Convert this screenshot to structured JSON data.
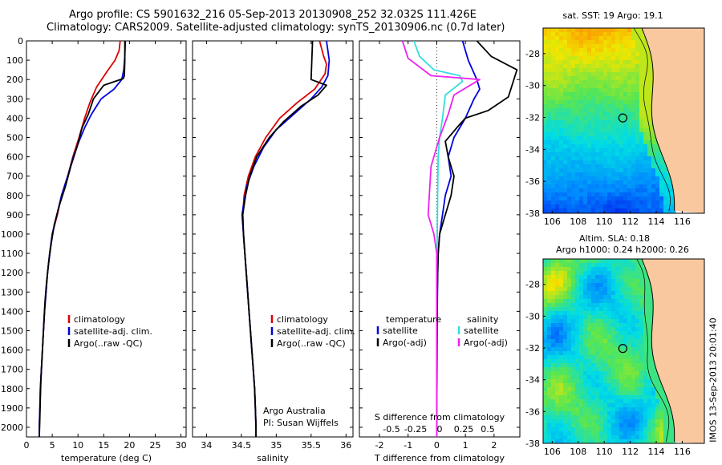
{
  "header": {
    "line1": "Argo profile: CS 5901632_216 05-Sep-2013 20130908_252 32.032S 111.426E",
    "line2": "Climatology: CARS2009. Satellite-adjusted climatology: synTS_20130906.nc (0.7d later)"
  },
  "colors": {
    "climatology": "#dd0000",
    "satellite": "#0000dd",
    "argo": "#000000",
    "salinity_sat": "#33dddd",
    "salinity_argo": "#ee22ee",
    "land": "#f9c89f"
  },
  "panels": {
    "temperature": {
      "xlabel": "temperature (deg C)",
      "legend": [
        "climatology",
        "satellite-adj. clim.",
        "Argo(..raw -QC)"
      ]
    },
    "salinity": {
      "xlabel": "salinity",
      "legend": [
        "climatology",
        "satellite-adj. clim.",
        "Argo(..raw -QC)"
      ],
      "note1": "Argo Australia",
      "note2": "PI: Susan Wijffels"
    },
    "difference": {
      "xlabel": "T difference from climatology",
      "top_title": "S difference from climatology",
      "legend_temp_title": "temperature",
      "legend_sal_title": "salinity",
      "legend_temp": [
        "satellite",
        "Argo(-adj)"
      ],
      "legend_sal": [
        "satellite",
        "Argo(-adj)"
      ]
    },
    "map_sst": {
      "title": "sat. SST: 19 Argo: 19.1"
    },
    "map_sla": {
      "title1": "Altim. SLA: 0.18",
      "title2": "Argo h1000: 0.24 h2000: 0.26"
    }
  },
  "stamp": "IMOS 13-Sep-2013 20:01:40",
  "chart_data": [
    {
      "type": "line",
      "title": "",
      "xlabel": "temperature (deg C)",
      "ylabel": "",
      "xlim": [
        0,
        31
      ],
      "ylim": [
        2050,
        0
      ],
      "y_reversed": true,
      "xticks": [
        "0",
        "5",
        "10",
        "15",
        "20",
        "25",
        "30"
      ],
      "yticks": [
        "0",
        "100",
        "200",
        "300",
        "400",
        "500",
        "600",
        "700",
        "800",
        "900",
        "1000",
        "1100",
        "1200",
        "1300",
        "1400",
        "1500",
        "1600",
        "1700",
        "1800",
        "1900",
        "2000"
      ],
      "series": [
        {
          "name": "climatology",
          "color": "#dd0000",
          "points": [
            [
              18.2,
              0
            ],
            [
              18.0,
              50
            ],
            [
              17.2,
              100
            ],
            [
              15.6,
              160
            ],
            [
              13.6,
              240
            ],
            [
              12.3,
              320
            ],
            [
              11.3,
              400
            ],
            [
              10.2,
              500
            ],
            [
              9.0,
              600
            ],
            [
              8.0,
              700
            ],
            [
              6.8,
              800
            ],
            [
              6.0,
              900
            ],
            [
              5.0,
              1000
            ],
            [
              4.5,
              1100
            ],
            [
              4.1,
              1200
            ],
            [
              3.8,
              1300
            ],
            [
              3.5,
              1400
            ],
            [
              3.3,
              1500
            ],
            [
              3.1,
              1600
            ],
            [
              2.9,
              1700
            ],
            [
              2.7,
              1800
            ],
            [
              2.6,
              1900
            ],
            [
              2.5,
              2000
            ],
            [
              2.5,
              2050
            ]
          ]
        },
        {
          "name": "satellite-adj. clim.",
          "color": "#0000dd",
          "points": [
            [
              19.2,
              0
            ],
            [
              19.1,
              80
            ],
            [
              18.9,
              150
            ],
            [
              18.5,
              200
            ],
            [
              17.0,
              250
            ],
            [
              14.5,
              300
            ],
            [
              12.6,
              380
            ],
            [
              11.3,
              450
            ],
            [
              10.2,
              520
            ],
            [
              9.1,
              600
            ],
            [
              8.0,
              700
            ],
            [
              6.8,
              800
            ],
            [
              5.9,
              900
            ],
            [
              5.0,
              1000
            ],
            [
              4.5,
              1100
            ],
            [
              4.1,
              1200
            ],
            [
              3.8,
              1300
            ],
            [
              3.5,
              1400
            ],
            [
              3.3,
              1500
            ],
            [
              3.1,
              1600
            ],
            [
              2.9,
              1700
            ],
            [
              2.7,
              1800
            ],
            [
              2.6,
              1900
            ],
            [
              2.5,
              2000
            ],
            [
              2.5,
              2050
            ]
          ]
        },
        {
          "name": "Argo(..raw -QC)",
          "color": "#000000",
          "points": [
            [
              19.1,
              0
            ],
            [
              19.1,
              100
            ],
            [
              19.0,
              180
            ],
            [
              18.8,
              195
            ],
            [
              15.0,
              230
            ],
            [
              13.0,
              300
            ],
            [
              12.0,
              380
            ],
            [
              10.8,
              450
            ],
            [
              9.8,
              550
            ],
            [
              8.6,
              650
            ],
            [
              7.6,
              750
            ],
            [
              6.4,
              850
            ],
            [
              5.4,
              950
            ],
            [
              4.8,
              1050
            ],
            [
              4.3,
              1150
            ],
            [
              3.9,
              1250
            ],
            [
              3.6,
              1350
            ],
            [
              3.4,
              1450
            ],
            [
              3.2,
              1550
            ],
            [
              3.0,
              1650
            ],
            [
              2.8,
              1750
            ],
            [
              2.7,
              1850
            ],
            [
              2.6,
              1950
            ],
            [
              2.5,
              2050
            ]
          ]
        }
      ]
    },
    {
      "type": "line",
      "title": "",
      "xlabel": "salinity",
      "ylabel": "",
      "xlim": [
        33.8,
        36.1
      ],
      "ylim": [
        2050,
        0
      ],
      "y_reversed": true,
      "xticks": [
        "34",
        "34.5",
        "35",
        "35.5",
        "36"
      ],
      "series": [
        {
          "name": "climatology",
          "color": "#dd0000",
          "points": [
            [
              35.62,
              0
            ],
            [
              35.68,
              80
            ],
            [
              35.72,
              120
            ],
            [
              35.7,
              170
            ],
            [
              35.55,
              250
            ],
            [
              35.3,
              320
            ],
            [
              35.05,
              400
            ],
            [
              34.85,
              500
            ],
            [
              34.7,
              600
            ],
            [
              34.6,
              700
            ],
            [
              34.54,
              800
            ],
            [
              34.52,
              900
            ],
            [
              34.53,
              1000
            ],
            [
              34.55,
              1100
            ],
            [
              34.57,
              1200
            ],
            [
              34.59,
              1300
            ],
            [
              34.61,
              1400
            ],
            [
              34.63,
              1500
            ],
            [
              34.65,
              1600
            ],
            [
              34.67,
              1700
            ],
            [
              34.69,
              1800
            ],
            [
              34.7,
              1900
            ],
            [
              34.71,
              2000
            ],
            [
              34.71,
              2050
            ]
          ]
        },
        {
          "name": "satellite-adj. clim.",
          "color": "#0000dd",
          "points": [
            [
              35.72,
              0
            ],
            [
              35.76,
              100
            ],
            [
              35.74,
              180
            ],
            [
              35.65,
              240
            ],
            [
              35.5,
              300
            ],
            [
              35.25,
              380
            ],
            [
              35.0,
              460
            ],
            [
              34.82,
              550
            ],
            [
              34.68,
              650
            ],
            [
              34.58,
              750
            ],
            [
              34.53,
              850
            ],
            [
              34.51,
              900
            ],
            [
              34.53,
              1000
            ],
            [
              34.55,
              1100
            ],
            [
              34.57,
              1200
            ],
            [
              34.59,
              1300
            ],
            [
              34.61,
              1400
            ],
            [
              34.63,
              1500
            ],
            [
              34.65,
              1600
            ],
            [
              34.67,
              1700
            ],
            [
              34.69,
              1800
            ],
            [
              34.7,
              1900
            ],
            [
              34.71,
              2000
            ],
            [
              34.71,
              2050
            ]
          ]
        },
        {
          "name": "Argo(..raw -QC)",
          "color": "#000000",
          "points": [
            [
              35.52,
              0
            ],
            [
              35.51,
              100
            ],
            [
              35.5,
              200
            ],
            [
              35.72,
              230
            ],
            [
              35.6,
              280
            ],
            [
              35.35,
              340
            ],
            [
              35.1,
              420
            ],
            [
              34.9,
              500
            ],
            [
              34.72,
              600
            ],
            [
              34.62,
              700
            ],
            [
              34.56,
              800
            ],
            [
              34.52,
              900
            ],
            [
              34.53,
              1000
            ],
            [
              34.55,
              1100
            ],
            [
              34.57,
              1200
            ],
            [
              34.59,
              1300
            ],
            [
              34.61,
              1400
            ],
            [
              34.63,
              1500
            ],
            [
              34.65,
              1600
            ],
            [
              34.67,
              1700
            ],
            [
              34.69,
              1800
            ],
            [
              34.7,
              1900
            ],
            [
              34.71,
              2000
            ],
            [
              34.71,
              2050
            ]
          ]
        }
      ]
    },
    {
      "type": "line",
      "title": "",
      "xlabel": "T difference from climatology",
      "ylabel": "",
      "xlim": [
        -2.7,
        2.9
      ],
      "ylim": [
        2050,
        0
      ],
      "y_reversed": true,
      "xticks": [
        "-2",
        "-1",
        "0",
        "1",
        "2"
      ],
      "top_xticks": [
        "-0.5",
        "-0.25",
        "0",
        "0.25",
        "0.5"
      ],
      "series": [
        {
          "name": "temperature satellite",
          "color": "#0000dd",
          "points": [
            [
              0.9,
              0
            ],
            [
              1.1,
              100
            ],
            [
              1.4,
              200
            ],
            [
              1.5,
              250
            ],
            [
              1.3,
              300
            ],
            [
              1.0,
              400
            ],
            [
              0.6,
              500
            ],
            [
              0.4,
              600
            ],
            [
              0.5,
              700
            ],
            [
              0.3,
              800
            ],
            [
              0.2,
              900
            ],
            [
              0.1,
              1000
            ],
            [
              0.05,
              1100
            ],
            [
              0.03,
              1200
            ],
            [
              0.02,
              1400
            ],
            [
              0.01,
              1600
            ],
            [
              0.0,
              2050
            ]
          ]
        },
        {
          "name": "temperature Argo(-adj)",
          "color": "#000000",
          "points": [
            [
              1.4,
              0
            ],
            [
              1.9,
              80
            ],
            [
              2.8,
              150
            ],
            [
              2.5,
              290
            ],
            [
              1.8,
              360
            ],
            [
              1.0,
              400
            ],
            [
              0.7,
              450
            ],
            [
              0.3,
              520
            ],
            [
              0.4,
              600
            ],
            [
              0.6,
              700
            ],
            [
              0.5,
              800
            ],
            [
              0.3,
              900
            ],
            [
              0.1,
              1000
            ],
            [
              0.05,
              1100
            ],
            [
              0.02,
              1300
            ],
            [
              0.0,
              2050
            ]
          ]
        },
        {
          "name": "salinity satellite",
          "color": "#33dddd",
          "points": [
            [
              -0.8,
              0
            ],
            [
              -0.6,
              80
            ],
            [
              -0.1,
              150
            ],
            [
              0.8,
              180
            ],
            [
              0.9,
              210
            ],
            [
              0.3,
              280
            ],
            [
              0.2,
              400
            ],
            [
              0.1,
              500
            ],
            [
              0.05,
              600
            ],
            [
              0.03,
              800
            ],
            [
              0.02,
              1000
            ],
            [
              0.0,
              1200
            ],
            [
              0.0,
              2050
            ]
          ]
        },
        {
          "name": "salinity Argo(-adj)",
          "color": "#ee22ee",
          "points": [
            [
              -1.2,
              0
            ],
            [
              -1.0,
              90
            ],
            [
              -0.2,
              180
            ],
            [
              1.5,
              200
            ],
            [
              0.6,
              280
            ],
            [
              0.4,
              380
            ],
            [
              0.1,
              500
            ],
            [
              -0.2,
              650
            ],
            [
              -0.3,
              900
            ],
            [
              -0.1,
              1000
            ],
            [
              0.0,
              1100
            ],
            [
              0.0,
              2050
            ]
          ]
        }
      ]
    },
    {
      "type": "heatmap",
      "title": "sat. SST: 19 Argo: 19.1",
      "xlim": [
        105.3,
        117.7
      ],
      "ylim": [
        -38,
        -26.4
      ],
      "xticks": [
        "106",
        "108",
        "110",
        "112",
        "114",
        "116"
      ],
      "yticks": [
        "-28",
        "-30",
        "-32",
        "-34",
        "-36",
        "-38"
      ],
      "argo_position": [
        111.43,
        -32.03
      ]
    },
    {
      "type": "heatmap",
      "title": "Altim. SLA: 0.18",
      "xlim": [
        105.3,
        117.7
      ],
      "ylim": [
        -38,
        -26.4
      ],
      "xticks": [
        "106",
        "108",
        "110",
        "112",
        "114",
        "116"
      ],
      "yticks": [
        "-28",
        "-30",
        "-32",
        "-34",
        "-36",
        "-38"
      ],
      "argo_position": [
        111.43,
        -32.03
      ]
    }
  ]
}
